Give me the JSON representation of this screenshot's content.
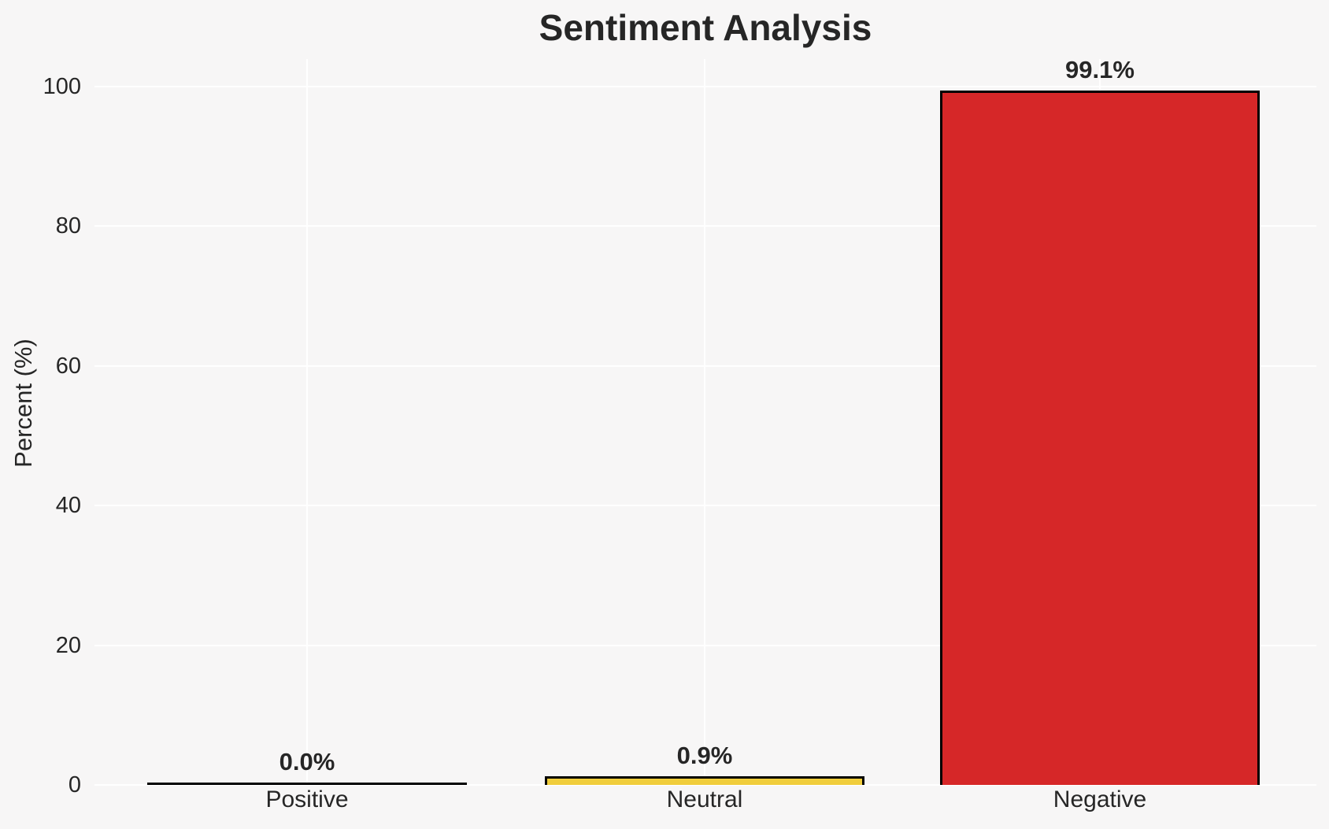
{
  "chart_data": {
    "type": "bar",
    "title": "Sentiment Analysis",
    "xlabel": "",
    "ylabel": "Percent (%)",
    "categories": [
      "Positive",
      "Neutral",
      "Negative"
    ],
    "values": [
      0.0,
      0.9,
      99.1
    ],
    "value_labels": [
      "0.0%",
      "0.9%",
      "99.1%"
    ],
    "yticks": [
      0,
      20,
      40,
      60,
      80,
      100
    ],
    "ylim": [
      0,
      104
    ],
    "grid": true,
    "legend": false,
    "colors": {
      "bars": [
        null,
        "#f0cd3c",
        "#d62728"
      ],
      "bar_edge": "#000000",
      "background": "#f7f6f6",
      "gridline": "#ffffff",
      "text": "#262626"
    }
  }
}
